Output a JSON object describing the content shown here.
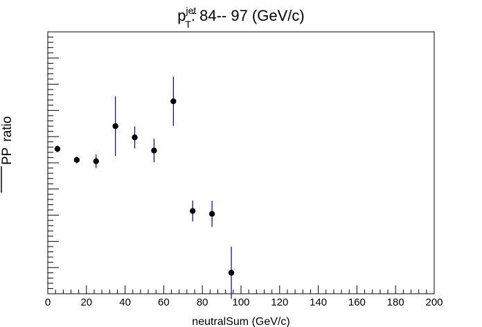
{
  "chart_data": {
    "type": "scatter",
    "title": {
      "main": "p",
      "superscript": "jet",
      "subscript": "T",
      "rest": ":  84-- 97 (GeV/c)"
    },
    "xlabel": "neutralSum (GeV/c)",
    "ylabel": {
      "rotated": "ratio",
      "fraction_bottom": "PP",
      "fraction_top": ""
    },
    "xlim": [
      0,
      200
    ],
    "x_major_ticks": [
      0,
      20,
      40,
      60,
      80,
      100,
      120,
      140,
      160,
      180,
      200
    ],
    "x_tick_labels": [
      "0",
      "20",
      "40",
      "60",
      "80",
      "100",
      "120",
      "140",
      "160",
      "180",
      "200"
    ],
    "y_tick_labels_visible": false,
    "grid": false,
    "marker_color": "#000000",
    "errorbar_color": "#00008b",
    "series": [
      {
        "points": [
          {
            "x": 5,
            "y": 0.553,
            "err": 0.013
          },
          {
            "x": 15,
            "y": 0.511,
            "err": 0.013
          },
          {
            "x": 25,
            "y": 0.506,
            "err": 0.026
          },
          {
            "x": 35,
            "y": 0.64,
            "err": 0.114
          },
          {
            "x": 45,
            "y": 0.597,
            "err": 0.042
          },
          {
            "x": 55,
            "y": 0.547,
            "err": 0.045
          },
          {
            "x": 65,
            "y": 0.735,
            "err": 0.094
          },
          {
            "x": 75,
            "y": 0.316,
            "err": 0.04
          },
          {
            "x": 85,
            "y": 0.305,
            "err": 0.05
          },
          {
            "x": 95,
            "y": 0.08,
            "err": 0.1
          }
        ]
      }
    ]
  }
}
